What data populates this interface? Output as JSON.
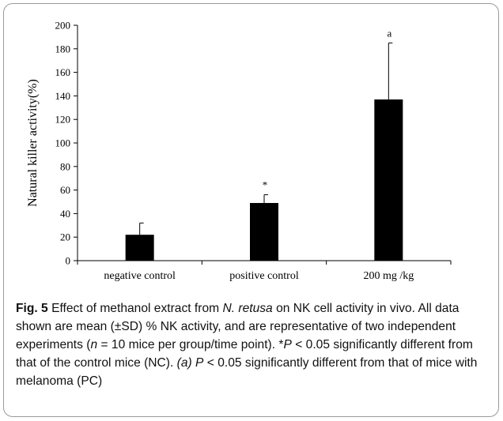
{
  "chart_data": {
    "type": "bar",
    "categories": [
      "negative control",
      "positive control",
      "200 mg /kg"
    ],
    "values": [
      22,
      49,
      137
    ],
    "errors": [
      10,
      7,
      48
    ],
    "annotations": [
      "",
      "*",
      "a"
    ],
    "ylabel": "Natural killer activity(%)",
    "xlabel": "",
    "ylim": [
      0,
      200
    ],
    "yticks": [
      0,
      20,
      40,
      60,
      80,
      100,
      120,
      140,
      160,
      180,
      200
    ],
    "bar_color": "#000000",
    "grid": false,
    "legend": "none"
  },
  "caption": {
    "fig_label": "Fig. 5",
    "parts": [
      {
        "text": "  Effect of methanol extract from ",
        "italic": false
      },
      {
        "text": "N. retusa",
        "italic": true
      },
      {
        "text": " on NK cell activity in vivo. All data shown are mean (±SD)  % NK activity, and are representative of two independent experiments (",
        "italic": false
      },
      {
        "text": "n",
        "italic": true
      },
      {
        "text": " = 10 mice per group/time point). *",
        "italic": false
      },
      {
        "text": "P",
        "italic": true
      },
      {
        "text": " < 0.05 significantly different from that of the control mice (NC). ",
        "italic": false
      },
      {
        "text": "(a) P",
        "italic": true
      },
      {
        "text": " < 0.05 significantly different from that of mice with melanoma (PC)",
        "italic": false
      }
    ]
  }
}
